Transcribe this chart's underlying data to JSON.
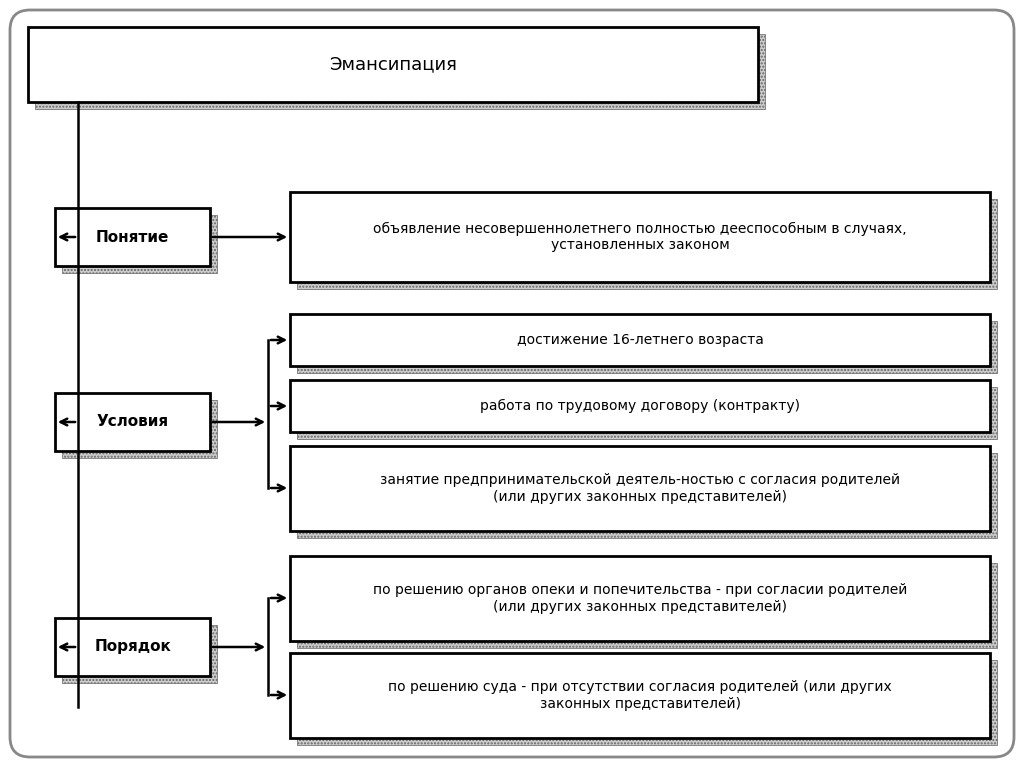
{
  "title": "Эмансипация",
  "cat_labels": [
    "Понятие",
    "Условия",
    "Порядок"
  ],
  "ponyatie_text": "объявление несовершеннолетнего полностью дееспособным в случаях,\nустановленных законом",
  "usloviya_texts": [
    "достижение 16-летнего возраста",
    "работа по трудовому договору (контракту)",
    "занятие предпринимательской деятель-ностью с согласия родителей\n(или других законных представителей)"
  ],
  "poryadok_texts": [
    "по решению органов опеки и попечительства - при согласии родителей\n(или других законных представителей)",
    "по решению суда - при отсутствии согласия родителей (или других\nзаконных представителей)"
  ],
  "bg_color": "#ffffff",
  "outer_border_color": "#888888",
  "box_facecolor": "#ffffff",
  "shadow_hatch": "....",
  "border_color": "#000000",
  "text_color": "#000000",
  "font_size": 10,
  "label_font_size": 11,
  "title_font_size": 13
}
